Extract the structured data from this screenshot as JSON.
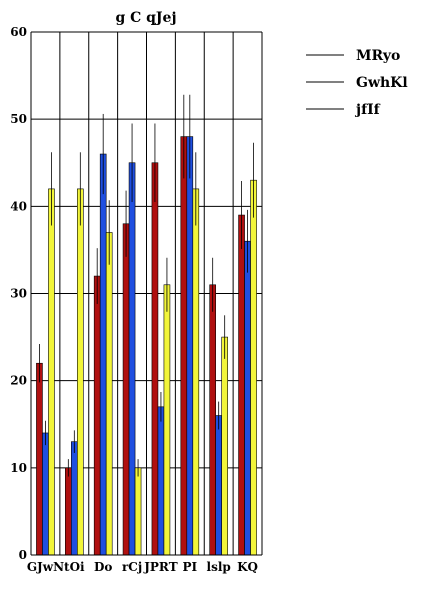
{
  "chart_data": {
    "type": "bar",
    "title": "g C qJej",
    "xlabel": "",
    "ylabel": "",
    "ylim": [
      0,
      60
    ],
    "yticks": [
      0,
      10,
      20,
      30,
      40,
      50,
      60
    ],
    "grid": "horizontal",
    "legend_position": "top-right",
    "categories": [
      "GJwN",
      "tOi",
      "Do",
      "rCj",
      "JPRT",
      "PI",
      "lslp",
      "KQ"
    ],
    "series": [
      {
        "name": "MRyo",
        "color": "#b01010",
        "values": [
          22,
          10,
          32,
          38,
          45,
          48,
          31,
          39
        ],
        "errors": [
          2.2,
          1.0,
          3.2,
          3.8,
          4.5,
          4.8,
          3.1,
          3.9
        ]
      },
      {
        "name": "GwhKl",
        "color": "#1f4fe0",
        "values": [
          14,
          13,
          46,
          45,
          17,
          48,
          16,
          36
        ],
        "errors": [
          1.4,
          1.3,
          4.6,
          4.5,
          1.7,
          4.8,
          1.6,
          3.6
        ]
      },
      {
        "name": "jfIf",
        "color": "#f2f53a",
        "values": [
          42,
          42,
          37,
          10,
          31,
          42,
          25,
          43
        ],
        "errors": [
          4.2,
          4.2,
          3.7,
          1.0,
          3.1,
          4.2,
          2.5,
          4.3
        ]
      }
    ]
  }
}
